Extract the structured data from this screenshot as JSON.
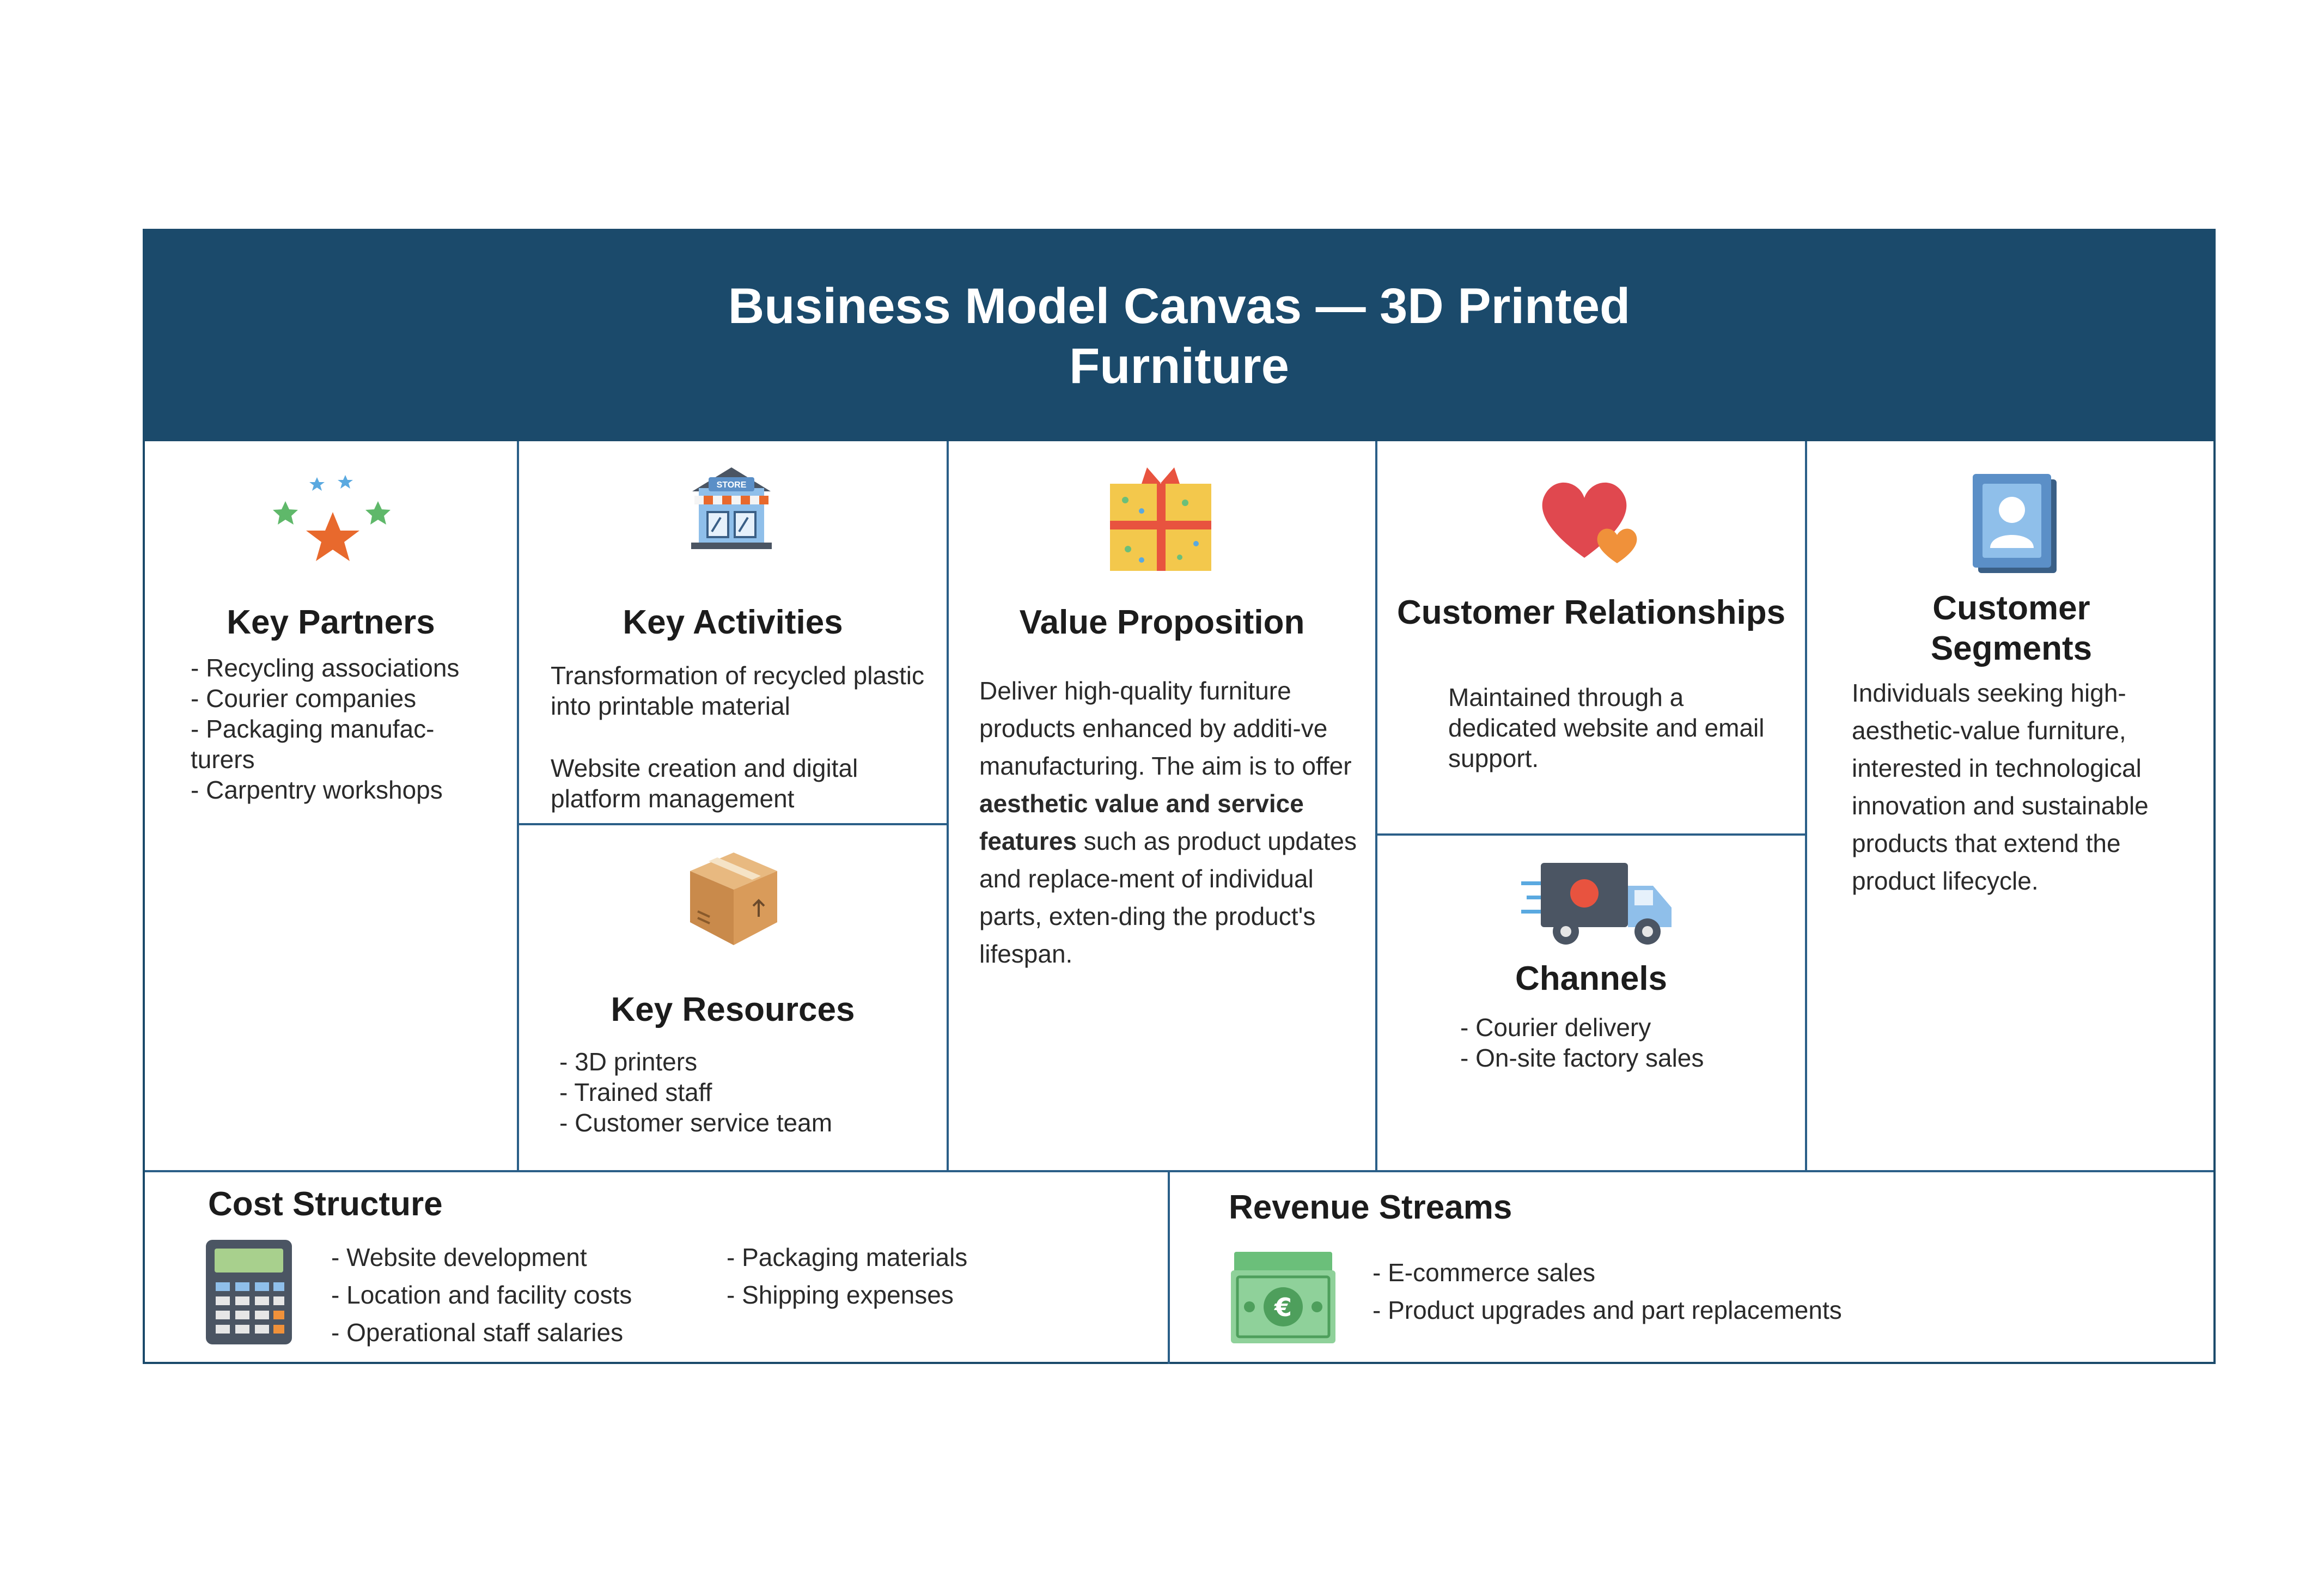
{
  "header": {
    "title": "Business Model Canvas — 3D Printed Furniture"
  },
  "key_partners": {
    "title": "Key Partners",
    "icon": "stars-icon",
    "items": [
      "Recycling associations",
      "Courier companies",
      "Packaging manufac-turers",
      "Carpentry workshops"
    ]
  },
  "key_activities": {
    "title": "Key Activities",
    "icon": "store-icon",
    "store_sign": "STORE",
    "paragraphs": [
      "Transformation of recycled plastic into printable material",
      "Website creation and digital platform management"
    ]
  },
  "key_resources": {
    "title": "Key Resources",
    "icon": "box-icon",
    "items": [
      "3D printers",
      "Trained staff",
      "Customer service team"
    ]
  },
  "value_proposition": {
    "title": "Value Proposition",
    "icon": "gift-icon",
    "text_1": "Deliver high-quality furniture products enhanced by additi-ve manufacturing. The aim is to offer ",
    "bold_1": "aesthetic value and service features",
    "text_2": " such as product updates and replace-ment of individual parts, exten-ding the product's lifespan."
  },
  "customer_relationships": {
    "title": "Customer Relationships",
    "icon": "hearts-icon",
    "text": "Maintained through a dedicated website and email support."
  },
  "channels": {
    "title": "Channels",
    "icon": "truck-icon",
    "items": [
      "Courier delivery",
      "On-site factory sales"
    ]
  },
  "customer_segments": {
    "title": "Customer Segments",
    "icon": "contact-book-icon",
    "text": "Individuals seeking high-aesthetic-value furniture, interested in technological innovation and sustainable products that extend the product lifecycle."
  },
  "cost_structure": {
    "title": "Cost Structure",
    "icon": "calculator-icon",
    "items_col1": [
      "Website development",
      "Location and facility costs",
      "Operational staff salaries"
    ],
    "items_col2": [
      "Packaging materials",
      "Shipping expenses"
    ]
  },
  "revenue_streams": {
    "title": "Revenue Streams",
    "icon": "euro-banknotes-icon",
    "currency_symbol": "€",
    "items": [
      "E-commerce sales",
      "Product upgrades and part replacements"
    ]
  },
  "colors": {
    "header_bg": "#1b4a6b",
    "grid_lines": "#2b5f88"
  }
}
